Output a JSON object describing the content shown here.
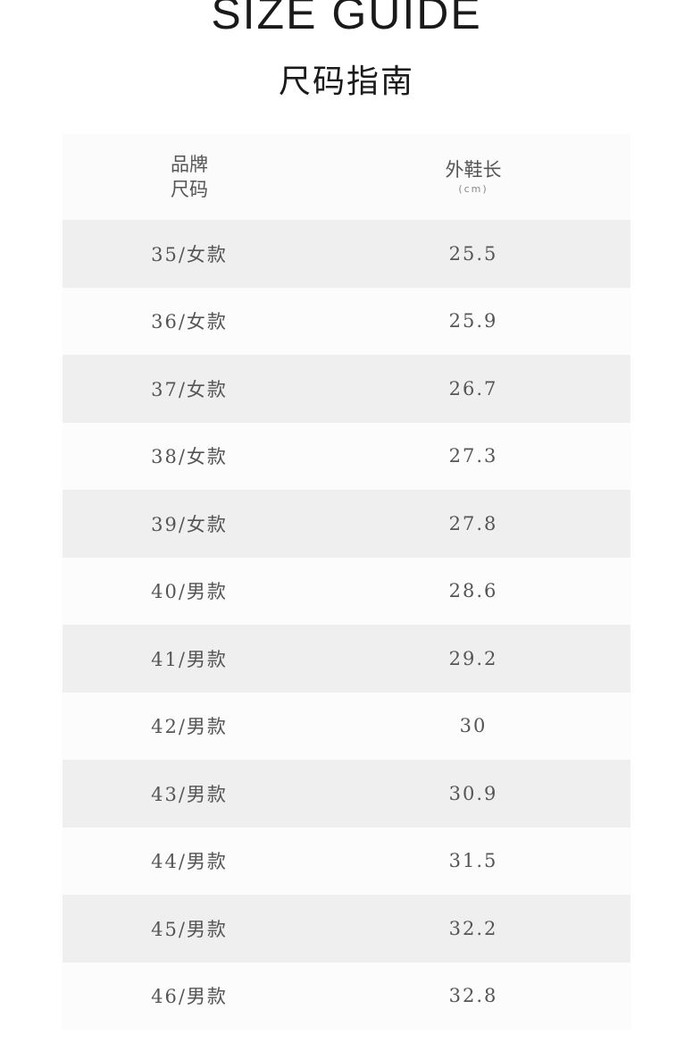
{
  "title": "SIZE GUIDE",
  "subtitle": "尺码指南",
  "table": {
    "header": {
      "size_line1": "品牌",
      "size_line2": "尺码",
      "length": "外鞋长",
      "unit": "(cm)"
    },
    "rows": [
      {
        "size": "35/女款",
        "length": "25.5"
      },
      {
        "size": "36/女款",
        "length": "25.9"
      },
      {
        "size": "37/女款",
        "length": "26.7"
      },
      {
        "size": "38/女款",
        "length": "27.3"
      },
      {
        "size": "39/女款",
        "length": "27.8"
      },
      {
        "size": "40/男款",
        "length": "28.6"
      },
      {
        "size": "41/男款",
        "length": "29.2"
      },
      {
        "size": "42/男款",
        "length": "30"
      },
      {
        "size": "43/男款",
        "length": "30.9"
      },
      {
        "size": "44/男款",
        "length": "31.5"
      },
      {
        "size": "45/男款",
        "length": "32.2"
      },
      {
        "size": "46/男款",
        "length": "32.8"
      }
    ]
  }
}
